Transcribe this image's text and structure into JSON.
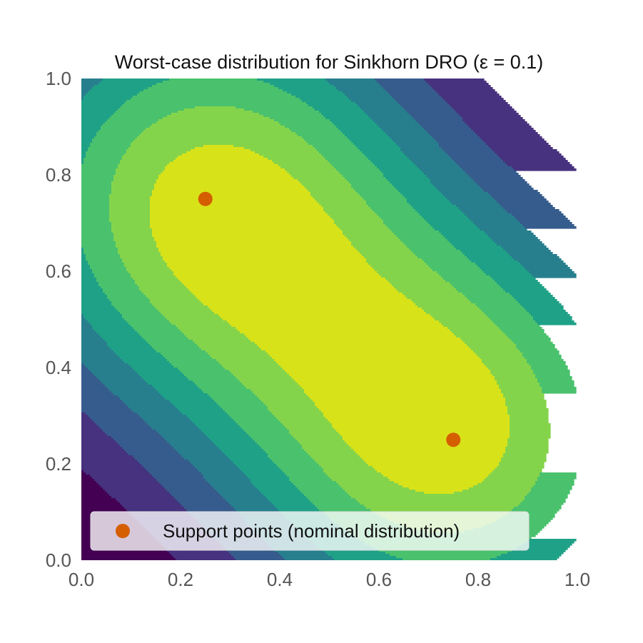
{
  "chart_data": {
    "type": "heatmap",
    "subtype": "filled-contour",
    "title": "Worst-case distribution for Sinkhorn DRO (ε = 0.1)",
    "xlabel": "",
    "ylabel": "",
    "xlim": [
      0.0,
      1.0
    ],
    "ylim": [
      0.0,
      1.0
    ],
    "xticks": [
      0.0,
      0.2,
      0.4,
      0.6,
      0.8,
      1.0
    ],
    "yticks": [
      0.0,
      0.2,
      0.4,
      0.6,
      0.8,
      1.0
    ],
    "xtick_labels": [
      "0.0",
      "0.2",
      "0.4",
      "0.6",
      "0.8",
      "1.0"
    ],
    "ytick_labels": [
      "0.0",
      "0.2",
      "0.4",
      "0.6",
      "0.8",
      "1.0"
    ],
    "colormap": "viridis",
    "grid": false,
    "contour_levels": 8,
    "level_colors": [
      "#440154",
      "#46327e",
      "#365c8d",
      "#277f8e",
      "#1fa187",
      "#4ac16d",
      "#84d44b",
      "#d8e219"
    ],
    "series": [
      {
        "name": "Support points (nominal distribution)",
        "type": "scatter",
        "color": "#d55e00",
        "points": [
          {
            "x": 0.25,
            "y": 0.75
          },
          {
            "x": 0.75,
            "y": 0.25
          }
        ]
      }
    ],
    "legend": {
      "position": "lower-left",
      "entries": [
        "Support points (nominal distribution)"
      ]
    }
  }
}
